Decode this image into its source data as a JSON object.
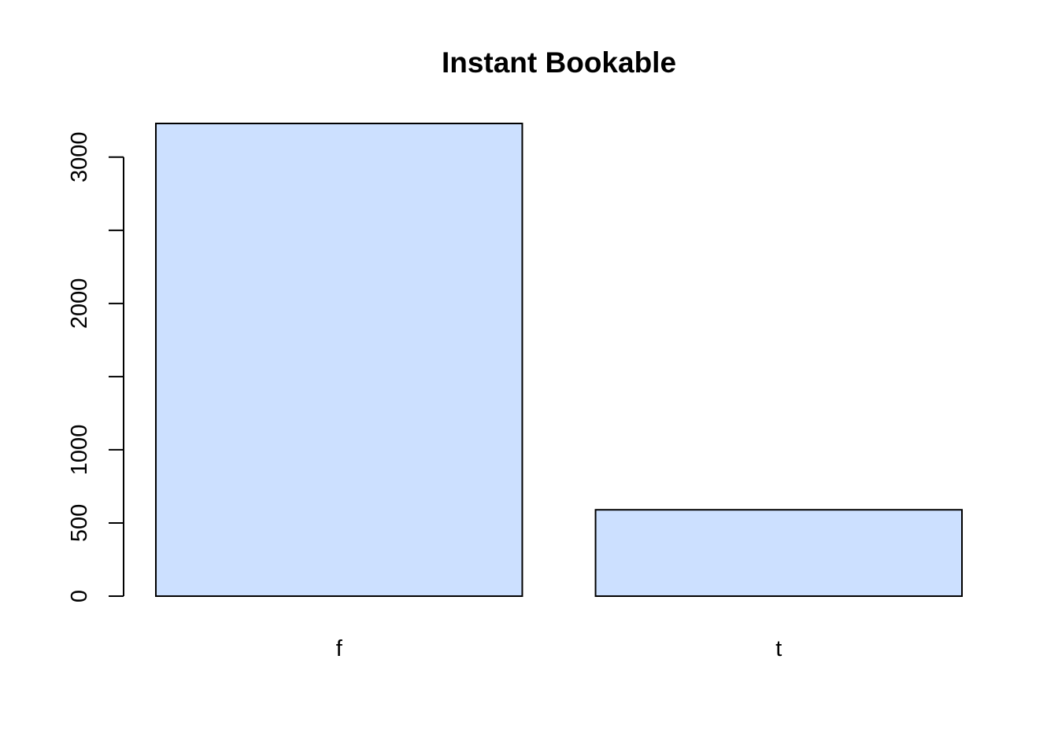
{
  "chart_data": {
    "type": "bar",
    "title": "Instant Bookable",
    "xlabel": "",
    "ylabel": "",
    "categories": [
      "f",
      "t"
    ],
    "values": [
      3230,
      590
    ],
    "ylim": [
      0,
      3230
    ],
    "yticks": [
      0,
      500,
      1000,
      1500,
      2000,
      2500,
      3000
    ],
    "ytick_labels": [
      "0",
      "500",
      "1000",
      "",
      "2000",
      "",
      "3000"
    ],
    "bar_color": "#CCE0FF",
    "grid": false,
    "legend": "none"
  }
}
